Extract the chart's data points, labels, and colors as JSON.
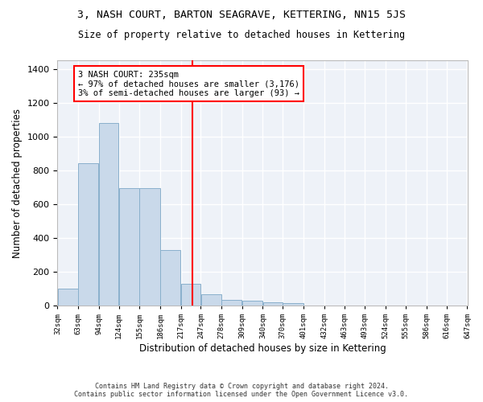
{
  "title": "3, NASH COURT, BARTON SEAGRAVE, KETTERING, NN15 5JS",
  "subtitle": "Size of property relative to detached houses in Kettering",
  "xlabel": "Distribution of detached houses by size in Kettering",
  "ylabel": "Number of detached properties",
  "bar_color": "#c9d9ea",
  "bar_edge_color": "#8ab0cc",
  "background_color": "#eef2f8",
  "grid_color": "#ffffff",
  "property_line_x": 235,
  "annotation_text": "3 NASH COURT: 235sqm\n← 97% of detached houses are smaller (3,176)\n3% of semi-detached houses are larger (93) →",
  "footer_line1": "Contains HM Land Registry data © Crown copyright and database right 2024.",
  "footer_line2": "Contains public sector information licensed under the Open Government Licence v3.0.",
  "bin_edges": [
    32,
    63,
    94,
    124,
    155,
    186,
    217,
    247,
    278,
    309,
    340,
    370,
    401,
    432,
    463,
    493,
    524,
    555,
    586,
    616,
    647
  ],
  "bin_labels": [
    "32sqm",
    "63sqm",
    "94sqm",
    "124sqm",
    "155sqm",
    "186sqm",
    "217sqm",
    "247sqm",
    "278sqm",
    "309sqm",
    "340sqm",
    "370sqm",
    "401sqm",
    "432sqm",
    "463sqm",
    "493sqm",
    "524sqm",
    "555sqm",
    "586sqm",
    "616sqm",
    "647sqm"
  ],
  "bar_heights": [
    100,
    840,
    1080,
    695,
    695,
    330,
    130,
    65,
    35,
    28,
    18,
    15,
    0,
    0,
    0,
    0,
    0,
    0,
    0,
    0
  ],
  "ylim": [
    0,
    1450
  ],
  "yticks": [
    0,
    200,
    400,
    600,
    800,
    1000,
    1200,
    1400
  ]
}
